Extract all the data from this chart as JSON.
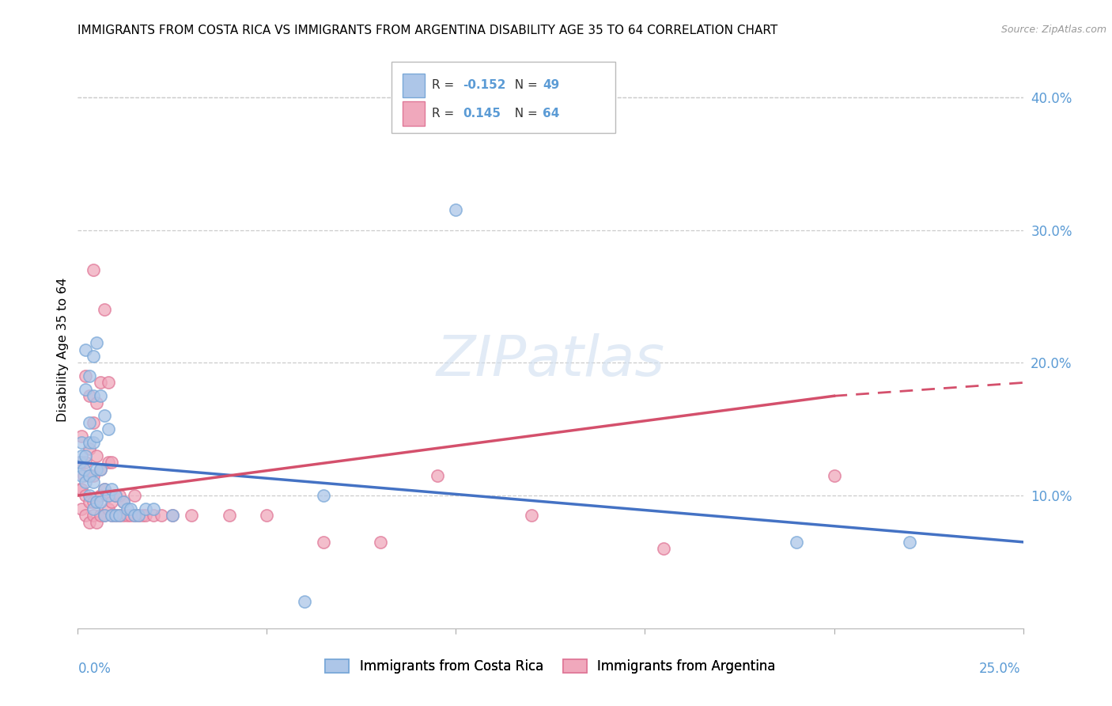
{
  "title": "IMMIGRANTS FROM COSTA RICA VS IMMIGRANTS FROM ARGENTINA DISABILITY AGE 35 TO 64 CORRELATION CHART",
  "source": "Source: ZipAtlas.com",
  "ylabel": "Disability Age 35 to 64",
  "legend_label_blue": "Immigrants from Costa Rica",
  "legend_label_pink": "Immigrants from Argentina",
  "legend_r_blue": "-0.152",
  "legend_n_blue": "49",
  "legend_r_pink": "0.145",
  "legend_n_pink": "64",
  "blue_color": "#adc6e8",
  "pink_color": "#f0a8bc",
  "blue_edge": "#7aa8d8",
  "pink_edge": "#e07898",
  "trend_blue": "#4472c4",
  "trend_pink": "#d4506c",
  "x_lim": [
    0.0,
    0.25
  ],
  "y_lim": [
    0.0,
    0.42
  ],
  "watermark_color": "#d0dff0",
  "blue_scatter_x": [
    0.0005,
    0.001,
    0.001,
    0.001,
    0.0015,
    0.002,
    0.002,
    0.002,
    0.002,
    0.003,
    0.003,
    0.003,
    0.003,
    0.003,
    0.004,
    0.004,
    0.004,
    0.004,
    0.004,
    0.005,
    0.005,
    0.005,
    0.005,
    0.006,
    0.006,
    0.006,
    0.007,
    0.007,
    0.007,
    0.008,
    0.008,
    0.009,
    0.009,
    0.01,
    0.01,
    0.011,
    0.012,
    0.013,
    0.014,
    0.015,
    0.016,
    0.018,
    0.02,
    0.025,
    0.06,
    0.065,
    0.1,
    0.19,
    0.22
  ],
  "blue_scatter_y": [
    0.125,
    0.13,
    0.115,
    0.14,
    0.12,
    0.11,
    0.13,
    0.18,
    0.21,
    0.1,
    0.115,
    0.14,
    0.155,
    0.19,
    0.09,
    0.11,
    0.14,
    0.175,
    0.205,
    0.095,
    0.12,
    0.145,
    0.215,
    0.095,
    0.12,
    0.175,
    0.085,
    0.105,
    0.16,
    0.1,
    0.15,
    0.085,
    0.105,
    0.085,
    0.1,
    0.085,
    0.095,
    0.09,
    0.09,
    0.085,
    0.085,
    0.09,
    0.09,
    0.085,
    0.02,
    0.1,
    0.315,
    0.065,
    0.065
  ],
  "pink_scatter_x": [
    0.0005,
    0.0005,
    0.001,
    0.001,
    0.001,
    0.001,
    0.0015,
    0.002,
    0.002,
    0.002,
    0.002,
    0.003,
    0.003,
    0.003,
    0.003,
    0.003,
    0.004,
    0.004,
    0.004,
    0.004,
    0.004,
    0.005,
    0.005,
    0.005,
    0.005,
    0.006,
    0.006,
    0.006,
    0.006,
    0.007,
    0.007,
    0.007,
    0.008,
    0.008,
    0.008,
    0.008,
    0.009,
    0.009,
    0.009,
    0.01,
    0.01,
    0.011,
    0.011,
    0.012,
    0.012,
    0.013,
    0.014,
    0.015,
    0.015,
    0.016,
    0.017,
    0.018,
    0.02,
    0.022,
    0.025,
    0.03,
    0.04,
    0.05,
    0.065,
    0.08,
    0.095,
    0.12,
    0.155,
    0.2
  ],
  "pink_scatter_y": [
    0.105,
    0.125,
    0.09,
    0.105,
    0.125,
    0.145,
    0.115,
    0.085,
    0.1,
    0.125,
    0.19,
    0.08,
    0.095,
    0.115,
    0.135,
    0.175,
    0.085,
    0.095,
    0.115,
    0.155,
    0.27,
    0.08,
    0.095,
    0.13,
    0.17,
    0.085,
    0.1,
    0.12,
    0.185,
    0.085,
    0.105,
    0.24,
    0.09,
    0.1,
    0.125,
    0.185,
    0.085,
    0.095,
    0.125,
    0.085,
    0.1,
    0.085,
    0.1,
    0.085,
    0.095,
    0.085,
    0.085,
    0.085,
    0.1,
    0.085,
    0.085,
    0.085,
    0.085,
    0.085,
    0.085,
    0.085,
    0.085,
    0.085,
    0.065,
    0.065,
    0.115,
    0.085,
    0.06,
    0.115
  ]
}
